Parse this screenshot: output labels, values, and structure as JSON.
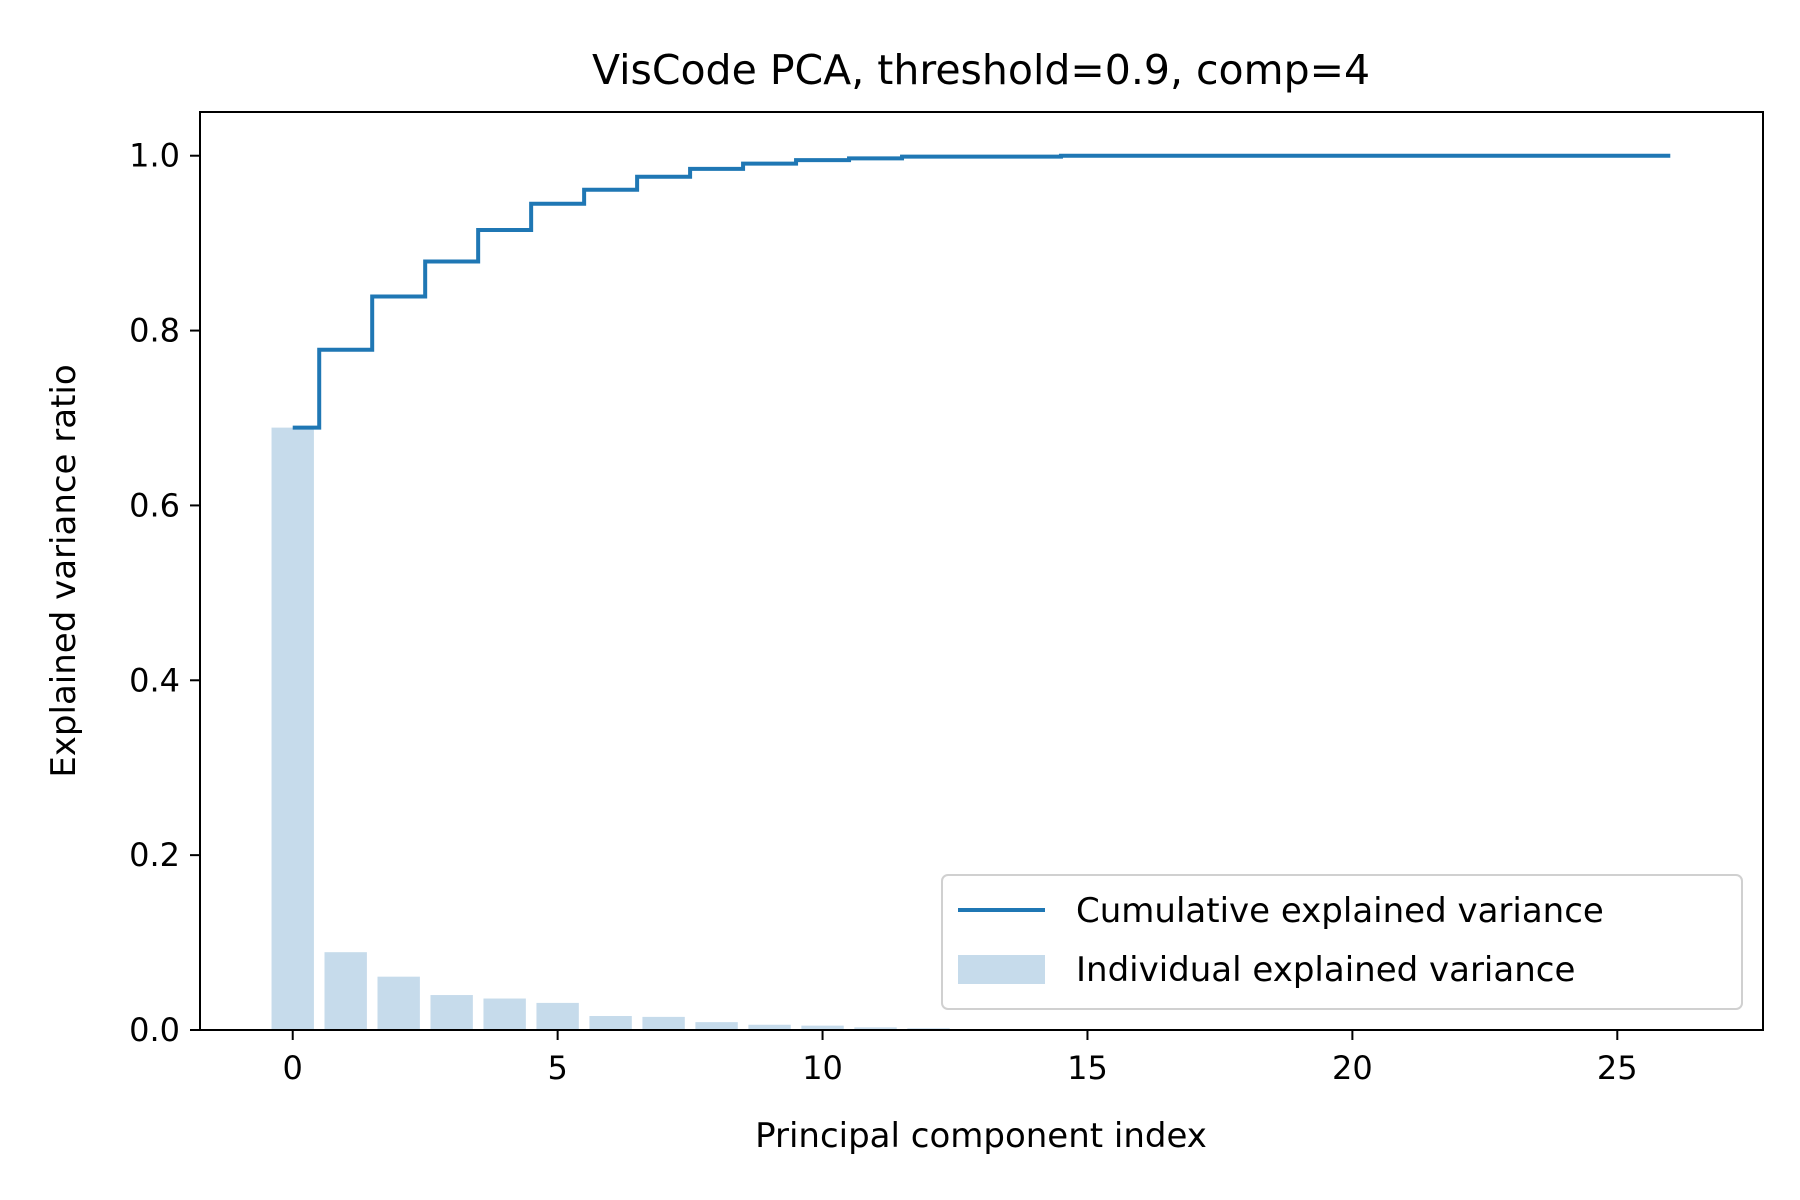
{
  "chart_data": {
    "type": "bar",
    "title": "VisCode PCA, threshold=0.9, comp=4",
    "xlabel": "Principal component index",
    "ylabel": "Explained variance ratio",
    "xlim": [
      -1.75,
      27.75
    ],
    "ylim": [
      0,
      1.05
    ],
    "xticks": [
      0,
      5,
      10,
      15,
      20,
      25
    ],
    "yticks": [
      0.0,
      0.2,
      0.4,
      0.6,
      0.8,
      1.0
    ],
    "grid": false,
    "legend_position": "lower-right",
    "x": [
      0,
      1,
      2,
      3,
      4,
      5,
      6,
      7,
      8,
      9,
      10,
      11,
      12,
      13,
      14,
      15,
      16,
      17,
      18,
      19,
      20,
      21,
      22,
      23,
      24,
      25,
      26
    ],
    "series": [
      {
        "name": "Individual explained variance",
        "type": "bar",
        "color": "#c6dbeb",
        "values": [
          0.689,
          0.089,
          0.061,
          0.04,
          0.036,
          0.031,
          0.016,
          0.015,
          0.009,
          0.006,
          0.005,
          0.003,
          0.002,
          0.001,
          0.001,
          0.001,
          0.0005,
          0.0004,
          0.0003,
          0.0002,
          0.0001,
          0.0001,
          0.0001,
          0.0,
          0.0,
          0.0,
          0.0
        ]
      },
      {
        "name": "Cumulative explained variance",
        "type": "step",
        "color": "#1f77b4",
        "values": [
          0.689,
          0.778,
          0.839,
          0.879,
          0.915,
          0.945,
          0.961,
          0.976,
          0.985,
          0.991,
          0.995,
          0.997,
          0.999,
          0.999,
          0.999,
          1.0,
          1.0,
          1.0,
          1.0,
          1.0,
          1.0,
          1.0,
          1.0,
          1.0,
          1.0,
          1.0,
          1.0
        ]
      }
    ]
  }
}
